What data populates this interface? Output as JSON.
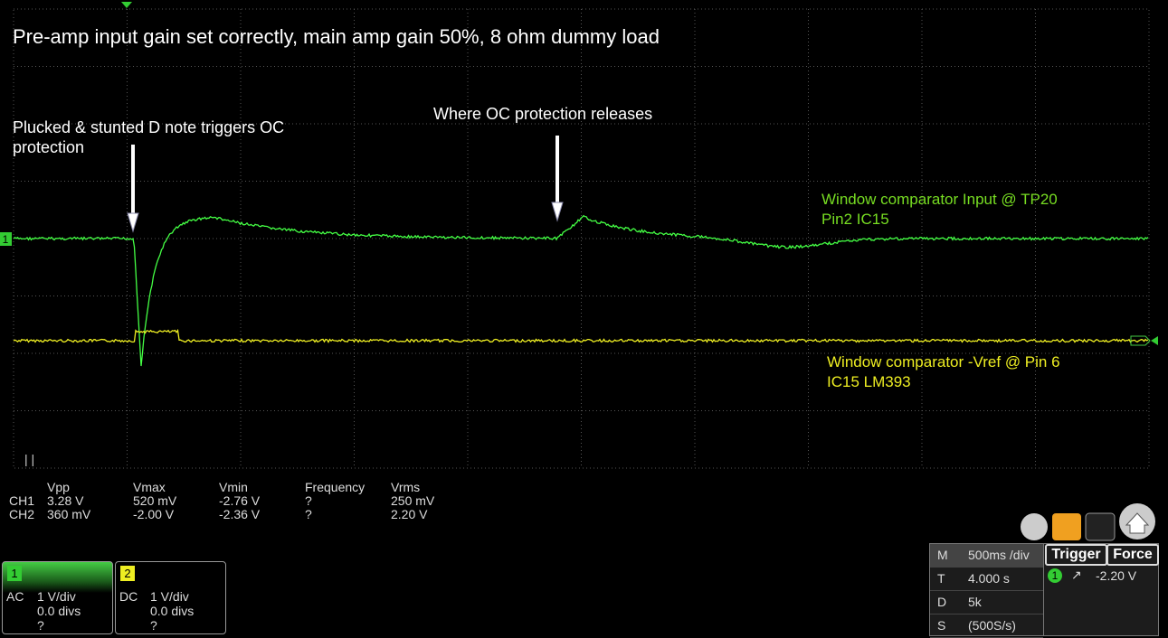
{
  "title": "Pre-amp input gain set correctly, main amp gain 50%, 8 ohm dummy load",
  "annotations": [
    {
      "lines": [
        "Plucked & stunted D note triggers OC",
        "protection"
      ]
    },
    {
      "lines": [
        "Where OC protection releases"
      ]
    }
  ],
  "trace_labels": [
    {
      "lines": [
        "Window comparator Input @ TP20",
        "Pin2 IC15"
      ]
    },
    {
      "lines": [
        "Window comparator -Vref @ Pin 6",
        "IC15 LM393"
      ]
    }
  ],
  "channel_marker": "1",
  "measurements": {
    "headers": [
      "Vpp",
      "Vmax",
      "Vmin",
      "Frequency",
      "Vrms"
    ],
    "rows": [
      [
        "CH1",
        "3.28 V",
        "520 mV",
        "-2.76 V",
        "?",
        "250 mV"
      ],
      [
        "CH2",
        "360 mV",
        "-2.00 V",
        "-2.36 V",
        "?",
        "2.20 V"
      ]
    ]
  },
  "channels": [
    {
      "number": "1",
      "coupling": "AC",
      "scale": "1 V/div",
      "offset": "0.0 divs",
      "extra": "?"
    },
    {
      "number": "2",
      "coupling": "DC",
      "scale": "1 V/div",
      "offset": "0.0 divs",
      "extra": "?"
    }
  ],
  "timebase": [
    [
      "M",
      "500ms /div"
    ],
    [
      "T",
      "4.000 s"
    ],
    [
      "D",
      "5k"
    ],
    [
      "S",
      "(500S/s)"
    ]
  ],
  "trigger": {
    "buttons": [
      "Trigger",
      "Force"
    ],
    "channel": "1",
    "level": "-2.20 V"
  }
}
